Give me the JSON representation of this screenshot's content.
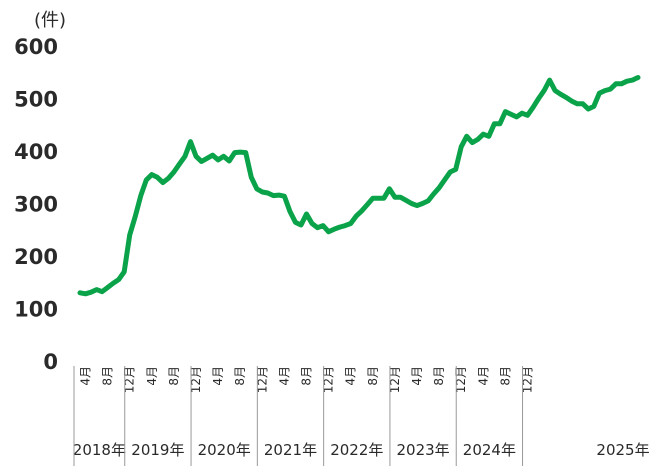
{
  "chart_data": {
    "type": "line",
    "unit_label": "(件)",
    "title": "",
    "xlabel": "",
    "ylabel": "",
    "ylim": [
      0,
      600
    ],
    "yticks": [
      "0",
      "100",
      "200",
      "300",
      "400",
      "500",
      "600"
    ],
    "grid": false,
    "legend": "none",
    "line_color": "#0aa34a",
    "x_start": "2018-03",
    "x_tick_labels": [
      {
        "month": 4,
        "year_index": 0,
        "label": "4月"
      },
      {
        "month": 8,
        "year_index": 0,
        "label": "8月"
      },
      {
        "month": 12,
        "year_index": 0,
        "label": "12月"
      },
      {
        "month": 4,
        "year_index": 1,
        "label": "4月"
      },
      {
        "month": 8,
        "year_index": 1,
        "label": "8月"
      },
      {
        "month": 12,
        "year_index": 1,
        "label": "12月"
      },
      {
        "month": 4,
        "year_index": 2,
        "label": "4月"
      },
      {
        "month": 8,
        "year_index": 2,
        "label": "8月"
      },
      {
        "month": 12,
        "year_index": 2,
        "label": "12月"
      },
      {
        "month": 4,
        "year_index": 3,
        "label": "4月"
      },
      {
        "month": 8,
        "year_index": 3,
        "label": "8月"
      },
      {
        "month": 12,
        "year_index": 3,
        "label": "12月"
      },
      {
        "month": 4,
        "year_index": 4,
        "label": "4月"
      },
      {
        "month": 8,
        "year_index": 4,
        "label": "8月"
      },
      {
        "month": 12,
        "year_index": 4,
        "label": "12月"
      },
      {
        "month": 4,
        "year_index": 5,
        "label": "4月"
      },
      {
        "month": 8,
        "year_index": 5,
        "label": "8月"
      },
      {
        "month": 12,
        "year_index": 5,
        "label": "12月"
      },
      {
        "month": 4,
        "year_index": 6,
        "label": "4月"
      },
      {
        "month": 8,
        "year_index": 6,
        "label": "8月"
      },
      {
        "month": 12,
        "year_index": 6,
        "label": "12月"
      }
    ],
    "years": [
      "2018年",
      "2019年",
      "2020年",
      "2021年",
      "2022年",
      "2023年",
      "2024年",
      "2025年"
    ],
    "values": [
      130,
      128,
      131,
      136,
      132,
      140,
      148,
      155,
      170,
      240,
      275,
      315,
      345,
      355,
      350,
      340,
      348,
      360,
      375,
      390,
      418,
      390,
      380,
      386,
      392,
      383,
      390,
      381,
      397,
      398,
      397,
      350,
      328,
      322,
      320,
      315,
      316,
      314,
      285,
      264,
      259,
      280,
      262,
      254,
      258,
      246,
      251,
      255,
      258,
      262,
      276,
      286,
      298,
      310,
      310,
      310,
      328,
      312,
      312,
      306,
      300,
      296,
      300,
      305,
      318,
      330,
      345,
      360,
      365,
      408,
      428,
      416,
      422,
      432,
      428,
      452,
      452,
      475,
      470,
      465,
      472,
      468,
      483,
      500,
      515,
      535,
      515,
      508,
      502,
      495,
      490,
      490,
      480,
      485,
      510,
      515,
      518,
      528,
      528,
      533,
      535,
      540
    ]
  }
}
